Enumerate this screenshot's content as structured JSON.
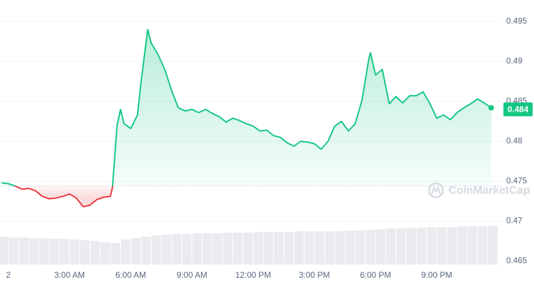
{
  "chart_data": {
    "type": "line",
    "x": [
      -0.33,
      0,
      0.33,
      0.67,
      1,
      1.33,
      1.67,
      2,
      2.33,
      2.67,
      3,
      3.33,
      3.67,
      4,
      4.33,
      4.67,
      5,
      5.1,
      5.33,
      5.5,
      5.67,
      6,
      6.33,
      6.5,
      6.83,
      7,
      7.33,
      7.67,
      8,
      8.33,
      8.67,
      9,
      9.33,
      9.67,
      10,
      10.33,
      10.67,
      11,
      11.33,
      11.67,
      12,
      12.33,
      12.67,
      13,
      13.33,
      13.67,
      14,
      14.33,
      14.67,
      15,
      15.33,
      15.67,
      16,
      16.33,
      16.67,
      17,
      17.33,
      17.67,
      17.75,
      18,
      18.33,
      18.67,
      19,
      19.33,
      19.67,
      20,
      20.33,
      20.67,
      21,
      21.33,
      21.67,
      22,
      22.33,
      22.67,
      23,
      23.33,
      23.67
    ],
    "values": [
      0.4748,
      0.4747,
      0.4744,
      0.474,
      0.4741,
      0.4738,
      0.4731,
      0.4728,
      0.4729,
      0.4731,
      0.4734,
      0.4729,
      0.4718,
      0.472,
      0.4727,
      0.473,
      0.4731,
      0.4742,
      0.482,
      0.484,
      0.4822,
      0.4816,
      0.4833,
      0.4873,
      0.494,
      0.4923,
      0.4909,
      0.489,
      0.4864,
      0.4842,
      0.4838,
      0.484,
      0.4836,
      0.484,
      0.4835,
      0.4831,
      0.4824,
      0.4829,
      0.4826,
      0.4822,
      0.4819,
      0.4813,
      0.4814,
      0.4807,
      0.4805,
      0.4798,
      0.4794,
      0.48,
      0.4799,
      0.4797,
      0.479,
      0.48,
      0.4819,
      0.4825,
      0.4813,
      0.4822,
      0.4851,
      0.4903,
      0.4911,
      0.4883,
      0.489,
      0.4847,
      0.4856,
      0.4848,
      0.4857,
      0.4857,
      0.4862,
      0.4847,
      0.4829,
      0.4833,
      0.4827,
      0.4836,
      0.4842,
      0.4847,
      0.4853,
      0.4848,
      0.4842
    ],
    "reference_line": 0.4744,
    "up_color": "#16c784",
    "down_color": "#ea3943",
    "current_price": 0.484,
    "xlim": [
      -0.41,
      24.2
    ],
    "ylim": [
      0.465,
      0.495
    ],
    "yticks": [
      0.465,
      0.47,
      0.475,
      0.48,
      0.485,
      0.49,
      0.495
    ],
    "xticks": [
      {
        "value": 0,
        "label": "2"
      },
      {
        "value": 3,
        "label": "3:00 AM"
      },
      {
        "value": 6,
        "label": "6:00 AM"
      },
      {
        "value": 9,
        "label": "9:00 AM"
      },
      {
        "value": 12,
        "label": "12:00 PM"
      },
      {
        "value": 15,
        "label": "3:00 PM"
      },
      {
        "value": 18,
        "label": "6:00 PM"
      },
      {
        "value": 21,
        "label": "9:00 PM"
      }
    ],
    "grid": true,
    "watermark": "CoinMarketCap",
    "volume": {
      "x": [
        -0.25,
        0.25,
        0.75,
        1.25,
        1.75,
        2.25,
        2.75,
        3.25,
        3.75,
        4.25,
        4.75,
        5.25,
        5.75,
        6.25,
        6.75,
        7.25,
        7.75,
        8.25,
        8.75,
        9.25,
        9.75,
        10.25,
        10.75,
        11.25,
        11.75,
        12.25,
        12.75,
        13.25,
        13.75,
        14.25,
        14.75,
        15.25,
        15.75,
        16.25,
        16.75,
        17.25,
        17.75,
        18.25,
        18.75,
        19.25,
        19.75,
        20.25,
        20.75,
        21.25,
        21.75,
        22.25,
        22.75,
        23.25,
        23.75
      ],
      "values": [
        40,
        39,
        39,
        38,
        38,
        37,
        37,
        36,
        35,
        34,
        32,
        31,
        36,
        38,
        40,
        42,
        43,
        44,
        44,
        45,
        45,
        45,
        46,
        46,
        46,
        47,
        47,
        47,
        47,
        48,
        48,
        48,
        48,
        48,
        49,
        49,
        50,
        51,
        52,
        52,
        53,
        53,
        54,
        54,
        54,
        55,
        55,
        55,
        56
      ],
      "vlim": [
        0,
        100
      ]
    }
  }
}
